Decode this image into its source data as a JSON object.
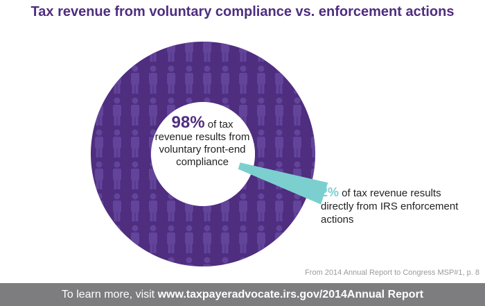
{
  "title": "Tax revenue from voluntary compliance vs. enforcement actions",
  "center_label": {
    "pct": "98%",
    "text": " of tax revenue results from voluntary front-end compliance"
  },
  "side_label": {
    "pct": "2%",
    "text": " of tax revenue results directly from IRS enforcement actions"
  },
  "source": "From 2014 Annual Report to Congress MSP#1, p. 8",
  "footer": {
    "prefix": "To learn more, visit ",
    "link": "www.taxpayeradvocate.irs.gov/2014Annual Report"
  },
  "colors": {
    "voluntary": "#4f2d7f",
    "enforcement": "#7ccfcf",
    "title": "#4f2d7f",
    "footer_bg": "#7d7d80"
  },
  "chart_data": {
    "type": "pie",
    "title": "Tax revenue from voluntary compliance vs. enforcement actions",
    "slices": [
      {
        "label": "voluntary front-end compliance",
        "value": 98
      },
      {
        "label": "IRS enforcement actions",
        "value": 2
      }
    ]
  }
}
